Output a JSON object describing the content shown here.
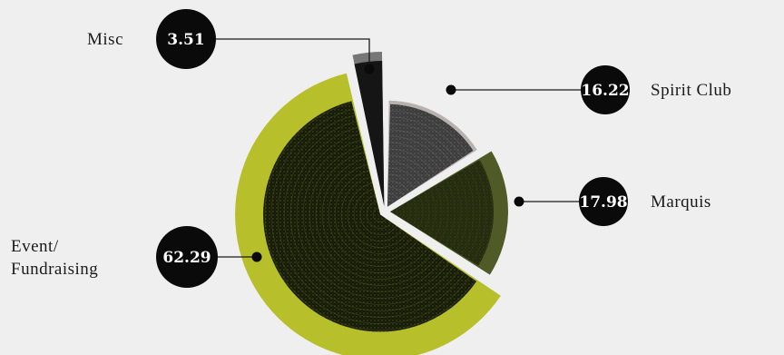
{
  "chart_data": {
    "type": "pie",
    "slices": [
      {
        "label": "Spirit Club",
        "label_lines": [
          "Spirit Club"
        ],
        "value": 16.22,
        "value_text": "16.22",
        "outer_color": "#b8b1b1",
        "inner_color": "#3c3c3c",
        "texture_color": "#8a8a8a"
      },
      {
        "label": "Marquis",
        "label_lines": [
          "Marquis"
        ],
        "value": 17.98,
        "value_text": "17.98",
        "outer_color": "#4f5a26",
        "inner_color": "#232a10",
        "texture_color": "#4a5a1c"
      },
      {
        "label": "Event/ Fundraising",
        "label_lines": [
          "Event/",
          "Fundraising"
        ],
        "value": 62.29,
        "value_text": "62.29",
        "outer_color": "#b7bf2b",
        "inner_color": "#161a0a",
        "texture_color": "#7b8a22"
      },
      {
        "label": "Misc",
        "label_lines": [
          "Misc"
        ],
        "value": 3.51,
        "value_text": "3.51",
        "outer_color": "#777777",
        "inner_color": "#151515",
        "texture_color": "#444444"
      }
    ],
    "start_angle_deg": 0,
    "direction": "clockwise",
    "legend_placement": "callouts"
  },
  "colors": {
    "background": "#efefef",
    "badge": "#0a0a0a",
    "badge_text": "#ffffff",
    "leader_line": "#1a1a1a",
    "separator": "#efefef"
  }
}
